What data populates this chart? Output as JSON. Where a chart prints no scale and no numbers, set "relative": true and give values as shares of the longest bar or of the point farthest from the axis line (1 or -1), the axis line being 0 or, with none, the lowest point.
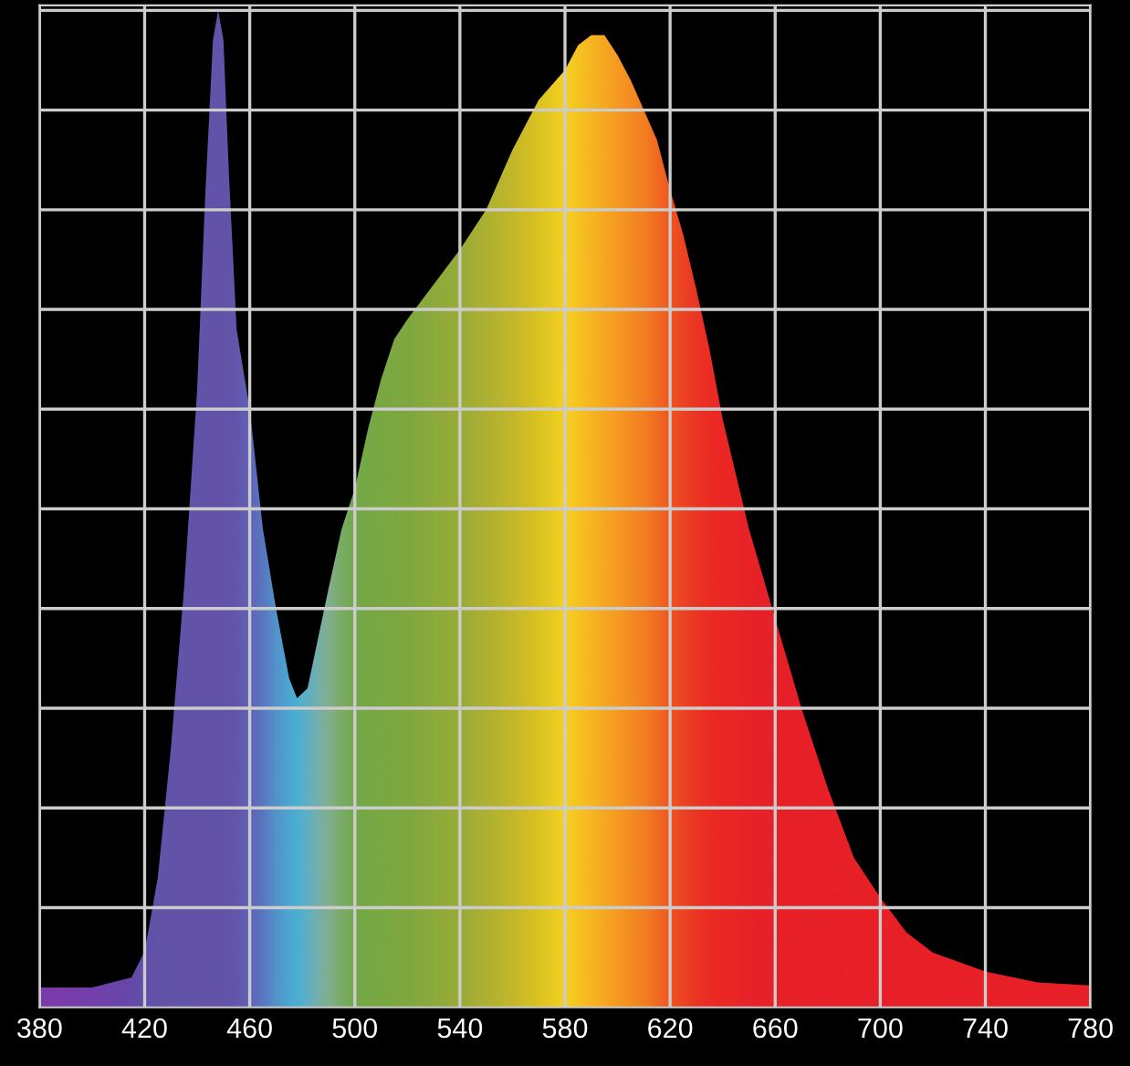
{
  "chart_data": {
    "type": "area",
    "relative": true,
    "grid": true,
    "xlim": [
      380,
      780
    ],
    "xticks": [
      380,
      420,
      460,
      500,
      540,
      580,
      620,
      660,
      700,
      740,
      780
    ],
    "x": [
      380,
      400,
      415,
      420,
      425,
      430,
      435,
      440,
      443,
      446,
      448,
      450,
      452,
      455,
      460,
      465,
      470,
      475,
      478,
      482,
      486,
      490,
      495,
      500,
      505,
      510,
      515,
      520,
      530,
      540,
      550,
      560,
      570,
      580,
      585,
      590,
      595,
      600,
      605,
      610,
      615,
      620,
      625,
      630,
      635,
      640,
      650,
      660,
      670,
      680,
      690,
      700,
      710,
      720,
      740,
      760,
      780
    ],
    "series": [
      {
        "color": "#e82028",
        "values": [
          0.02,
          0.02,
          0.03,
          0.056,
          0.13,
          0.26,
          0.42,
          0.62,
          0.81,
          0.97,
          1.0,
          0.97,
          0.84,
          0.68,
          0.6,
          0.48,
          0.4,
          0.33,
          0.31,
          0.32,
          0.37,
          0.42,
          0.48,
          0.52,
          0.58,
          0.63,
          0.67,
          0.69,
          0.725,
          0.76,
          0.8,
          0.86,
          0.91,
          0.94,
          0.965,
          0.975,
          0.975,
          0.955,
          0.93,
          0.9,
          0.87,
          0.82,
          0.775,
          0.72,
          0.66,
          0.59,
          0.48,
          0.39,
          0.3,
          0.22,
          0.15,
          0.11,
          0.075,
          0.055,
          0.036,
          0.025,
          0.022
        ],
        "colors": [
          "#6a3fc0",
          "#5f45c2",
          "#5050c0",
          "#4a58c0",
          "#4a5cc0",
          "#4a5cc0",
          "#4a5cc0",
          "#4a5cc0",
          "#4a5cc0",
          "#4a5cc0",
          "#4a5cc0",
          "#4a5cc0",
          "#4a5cc0",
          "#4a60c4",
          "#4a70d0",
          "#4088dc",
          "#38a8e8",
          "#30c0f0",
          "#30c8f0",
          "#48c8e0",
          "#60c8c0",
          "#70c8a0",
          "#66c470",
          "#60c050",
          "#62c04a",
          "#66c048",
          "#6ac046",
          "#6cc044",
          "#7cc240",
          "#8cc43c",
          "#a4ca34",
          "#bcd22c",
          "#d8e020",
          "#f8f020",
          "#f8e020",
          "#f8d020",
          "#f8c020",
          "#f8b020",
          "#f6a020",
          "#f49020",
          "#f27820",
          "#f06020",
          "#ee4a22",
          "#ec3a24",
          "#ec2e24",
          "#ec2a24",
          "#e82428",
          "#e82028",
          "#e82028",
          "#e82028",
          "#e82028",
          "#e82028",
          "#e82028",
          "#e82028",
          "#e82028",
          "#e82028",
          "#e82028"
        ]
      }
    ]
  }
}
